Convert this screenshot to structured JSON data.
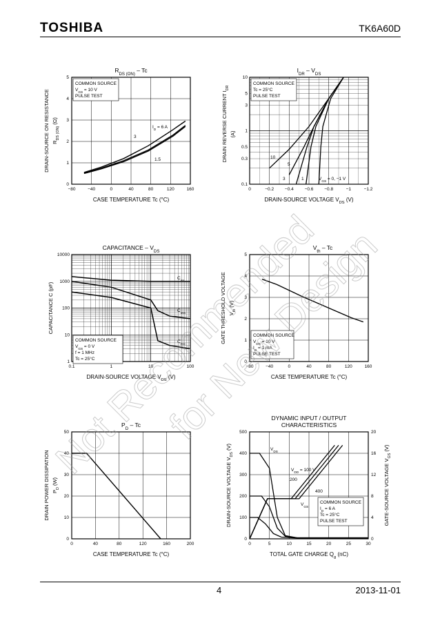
{
  "header": {
    "brand": "TOSHIBA",
    "part_number": "TK6A60D"
  },
  "footer": {
    "page": "4",
    "date": "2013-11-01"
  },
  "watermark": "Not Recommended for New Design",
  "charts": [
    {
      "id": "rds",
      "title": "R",
      "title_sub": "DS (ON)",
      "title_suffix": " – Tc",
      "xlabel": "CASE TEMPERATURE    Tc    (°C)",
      "ylabel1": "DRAIN-SOURCE ON RESISTANCE",
      "ylabel2": "R",
      "ylabel2_sub": "DS (ON)",
      "ylabel2_suffix": "  (Ω)",
      "x_ticks": [
        "−80",
        "−40",
        "0",
        "40",
        "80",
        "120",
        "160"
      ],
      "y_ticks": [
        "0",
        "1",
        "2",
        "3",
        "4",
        "5"
      ],
      "notes": [
        "COMMON SOURCE",
        "VGS = 10 V",
        "PULSE TEST"
      ],
      "curve_labels": [
        "ID = 6 A",
        "3",
        "1.5"
      ]
    },
    {
      "id": "idr",
      "title": "I",
      "title_sub": "DR",
      "title_suffix": " – V",
      "title_sub2": "DS",
      "xlabel": "DRAIN-SOURCE VOLTAGE    V",
      "xlabel_sub": "DS",
      "xlabel_suffix": "    (V)",
      "ylabel1": "DRAIN REVERSE CURRENT    I",
      "ylabel1_sub": "DR",
      "ylabel2": "(A)",
      "x_ticks": [
        "0",
        "−0.2",
        "−0.4",
        "−0.6",
        "−0.8",
        "−1",
        "−1.2"
      ],
      "y_ticks": [
        "0.1",
        "0.3",
        "0.5",
        "1",
        "3",
        "5",
        "10"
      ],
      "notes": [
        "COMMON SOURCE",
        "Tc = 25°C",
        "PULSE TEST"
      ],
      "curve_labels": [
        "10",
        "5",
        "3",
        "1",
        "VGS = 0, −1 V"
      ]
    },
    {
      "id": "cap",
      "title": "CAPACITANCE – V",
      "title_sub": "DS",
      "xlabel": "DRAIN-SOURCE VOLTAGE    V",
      "xlabel_sub": "DS",
      "xlabel_suffix": "    (V)",
      "ylabel1": "CAPACITANCE    C    (pF)",
      "x_ticks": [
        "0.1",
        "1",
        "10",
        "100"
      ],
      "y_ticks": [
        "1",
        "10",
        "100",
        "1000",
        "10000"
      ],
      "notes": [
        "COMMON SOURCE",
        "VGS = 0 V",
        "f = 1 MHz",
        "Tc = 25°C"
      ],
      "curve_labels": [
        "Ciss",
        "Coss",
        "Crss"
      ]
    },
    {
      "id": "vth",
      "title": "V",
      "title_sub": "th",
      "title_suffix": " – Tc",
      "xlabel": "CASE TEMPERATURE    Tc    (°C)",
      "ylabel1": "GATE THRESHOLD VOLTAGE",
      "ylabel2": "V",
      "ylabel2_sub": "th",
      "ylabel2_suffix": "    (V)",
      "x_ticks": [
        "−80",
        "−40",
        "0",
        "40",
        "80",
        "120",
        "160"
      ],
      "y_ticks": [
        "0",
        "1",
        "2",
        "3",
        "4",
        "5"
      ],
      "notes": [
        "COMMON SOURCE",
        "VDS = 10 V",
        "ID = 1 mA",
        "PULSE TEST"
      ]
    },
    {
      "id": "pd",
      "title": "P",
      "title_sub": "D",
      "title_suffix": " – Tc",
      "xlabel": "CASE TEMPERATURE    Tc    (°C)",
      "ylabel1": "DRAIN POWER DISSIPATION",
      "ylabel2": "P",
      "ylabel2_sub": "D",
      "ylabel2_suffix": "    (W)",
      "x_ticks": [
        "0",
        "40",
        "80",
        "120",
        "160",
        "200"
      ],
      "y_ticks": [
        "0",
        "10",
        "20",
        "30",
        "40",
        "50"
      ]
    },
    {
      "id": "dyn",
      "title": "DYNAMIC INPUT / OUTPUT",
      "title2": "CHARACTERISTICS",
      "xlabel": "TOTAL GATE CHARGE    Q",
      "xlabel_sub": "g",
      "xlabel_suffix": "    (nC)",
      "ylabel1": "DRAIN-SOURCE VOLTAGE    V",
      "ylabel1_sub": "DS",
      "ylabel1_suffix": "    (V)",
      "ylabel_right": "GATE-SOURCE VOLTAGE    V",
      "ylabel_right_sub": "GS",
      "ylabel_right_suffix": "    (V)",
      "x_ticks": [
        "0",
        "5",
        "10",
        "15",
        "20",
        "25",
        "30"
      ],
      "y_ticks": [
        "0",
        "100",
        "200",
        "300",
        "400",
        "500"
      ],
      "y2_ticks": [
        "0",
        "4",
        "8",
        "12",
        "16",
        "20"
      ],
      "notes": [
        "COMMON SOURCE",
        "ID = 6 A",
        "Tc = 25°C",
        "PULSE TEST"
      ],
      "curve_labels": [
        "VDS",
        "VDD = 100 V",
        "200",
        "400",
        "VGS"
      ]
    }
  ],
  "chart_data": [
    {
      "type": "line",
      "title": "RDS (ON) – Tc",
      "xlabel": "CASE TEMPERATURE Tc (°C)",
      "ylabel": "DRAIN-SOURCE ON RESISTANCE RDS (ON) (Ω)",
      "xlim": [
        -80,
        160
      ],
      "ylim": [
        0,
        5
      ],
      "series": [
        {
          "name": "ID = 6 A",
          "x": [
            -55,
            -20,
            25,
            75,
            125,
            150
          ],
          "y": [
            0.55,
            0.8,
            1.2,
            1.8,
            2.55,
            2.95
          ]
        },
        {
          "name": "3",
          "x": [
            -55,
            -20,
            25,
            75,
            125,
            150
          ],
          "y": [
            0.52,
            0.75,
            1.1,
            1.6,
            2.3,
            2.75
          ]
        },
        {
          "name": "1.5",
          "x": [
            -55,
            -20,
            25,
            75,
            125,
            150
          ],
          "y": [
            0.5,
            0.72,
            1.05,
            1.55,
            2.25,
            2.7
          ]
        }
      ]
    },
    {
      "type": "line",
      "title": "IDR – VDS",
      "xlabel": "DRAIN-SOURCE VOLTAGE VDS (V)",
      "ylabel": "DRAIN REVERSE CURRENT IDR (A)",
      "xlim": [
        0,
        -1.2
      ],
      "ylim": [
        0.1,
        10
      ],
      "yscale": "log",
      "series": [
        {
          "name": "10",
          "x": [
            -0.2,
            -0.4,
            -0.6,
            -0.8,
            -0.95
          ],
          "y": [
            0.2,
            0.45,
            1.2,
            4,
            10
          ]
        },
        {
          "name": "5",
          "x": [
            -0.4,
            -0.55,
            -0.65,
            -0.8,
            -0.95
          ],
          "y": [
            0.15,
            0.5,
            1.2,
            4,
            10
          ]
        },
        {
          "name": "3",
          "x": [
            -0.47,
            -0.58,
            -0.65,
            -0.8,
            -0.95
          ],
          "y": [
            0.1,
            0.5,
            1.2,
            4,
            10
          ]
        },
        {
          "name": "1",
          "x": [
            -0.57,
            -0.62,
            -0.67,
            -0.8,
            -0.95
          ],
          "y": [
            0.1,
            0.5,
            1.2,
            4,
            10
          ]
        },
        {
          "name": "VGS = 0, −1 V",
          "x": [
            -0.7,
            -0.72,
            -0.74,
            -0.82,
            -0.95
          ],
          "y": [
            0.1,
            0.5,
            1.2,
            4,
            10
          ]
        }
      ]
    },
    {
      "type": "line",
      "title": "CAPACITANCE – VDS",
      "xlabel": "DRAIN-SOURCE VOLTAGE VDS (V)",
      "ylabel": "CAPACITANCE C (pF)",
      "xlim": [
        0.1,
        100
      ],
      "ylim": [
        1,
        10000
      ],
      "xscale": "log",
      "yscale": "log",
      "series": [
        {
          "name": "Ciss",
          "x": [
            0.1,
            1,
            10,
            100
          ],
          "y": [
            1500,
            1100,
            1000,
            1000
          ]
        },
        {
          "name": "Coss",
          "x": [
            0.1,
            1,
            10,
            15,
            30,
            100
          ],
          "y": [
            1000,
            600,
            200,
            80,
            50,
            40
          ]
        },
        {
          "name": "Crss",
          "x": [
            0.1,
            1,
            10,
            15,
            30,
            100
          ],
          "y": [
            400,
            250,
            100,
            6,
            4,
            3
          ]
        }
      ]
    },
    {
      "type": "line",
      "title": "Vth – Tc",
      "xlabel": "CASE TEMPERATURE Tc (°C)",
      "ylabel": "GATE THRESHOLD VOLTAGE Vth (V)",
      "xlim": [
        -80,
        160
      ],
      "ylim": [
        0,
        5
      ],
      "series": [
        {
          "name": "Vth",
          "x": [
            -55,
            -25,
            25,
            75,
            125,
            150
          ],
          "y": [
            3.85,
            3.6,
            3.05,
            2.55,
            2.05,
            1.85
          ]
        }
      ]
    },
    {
      "type": "line",
      "title": "PD – Tc",
      "xlabel": "CASE TEMPERATURE Tc (°C)",
      "ylabel": "DRAIN POWER DISSIPATION PD (W)",
      "xlim": [
        0,
        200
      ],
      "ylim": [
        0,
        50
      ],
      "series": [
        {
          "name": "PD",
          "x": [
            0,
            25,
            150
          ],
          "y": [
            40,
            40,
            0
          ]
        }
      ]
    },
    {
      "type": "line",
      "title": "DYNAMIC INPUT / OUTPUT CHARACTERISTICS",
      "xlabel": "TOTAL GATE CHARGE Qg (nC)",
      "ylabel": "DRAIN-SOURCE VOLTAGE VDS (V)",
      "y2label": "GATE-SOURCE VOLTAGE VGS (V)",
      "xlim": [
        0,
        30
      ],
      "ylim": [
        0,
        500
      ],
      "y2lim": [
        0,
        20
      ],
      "series": [
        {
          "name": "VDS 400",
          "axis": "left",
          "x": [
            0,
            2.5,
            5,
            7,
            9,
            12,
            30
          ],
          "y": [
            400,
            400,
            330,
            100,
            15,
            5,
            5
          ]
        },
        {
          "name": "VDS 200",
          "axis": "left",
          "x": [
            0,
            3,
            5,
            7,
            9,
            12,
            30
          ],
          "y": [
            200,
            200,
            150,
            50,
            12,
            5,
            5
          ]
        },
        {
          "name": "VDS 100",
          "axis": "left",
          "x": [
            0,
            2,
            4,
            6,
            8,
            12,
            30
          ],
          "y": [
            100,
            100,
            70,
            25,
            8,
            4,
            4
          ]
        },
        {
          "name": "VGS VDD = 100 V",
          "axis": "right",
          "x": [
            0,
            4.5,
            10.5,
            21.5
          ],
          "y": [
            0,
            7.5,
            7.5,
            17.5
          ]
        },
        {
          "name": "VGS 200",
          "axis": "right",
          "x": [
            0,
            4.5,
            11.5,
            22.5
          ],
          "y": [
            0,
            7.5,
            7.5,
            17.5
          ]
        },
        {
          "name": "VGS 400",
          "axis": "right",
          "x": [
            0,
            4.5,
            12.5,
            23.5
          ],
          "y": [
            0,
            7.5,
            7.5,
            17.5
          ]
        }
      ]
    }
  ]
}
